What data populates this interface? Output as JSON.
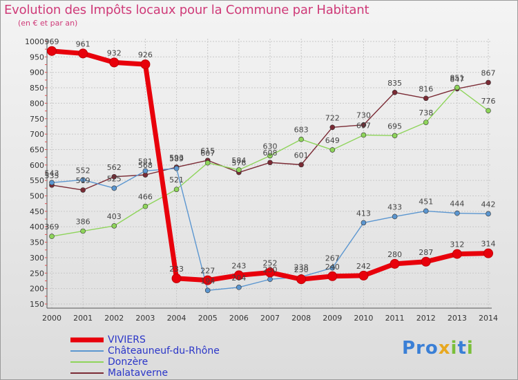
{
  "header": {
    "title": "Evolution des Impôts locaux pour la Commune par Habitant",
    "subtitle": "(en € et par an)"
  },
  "logo": {
    "text": "Proxiti"
  },
  "colors": {
    "title": "#cf3a78",
    "legend_text": "#2a35c8",
    "grid": "#c8c8c8"
  },
  "chart_data": {
    "type": "line",
    "title": "Evolution des Impôts locaux pour la Commune par Habitant",
    "subtitle": "(en € et par an)",
    "xlabel": "",
    "ylabel": "",
    "x": [
      2000,
      2001,
      2002,
      2003,
      2004,
      2005,
      2006,
      2007,
      2008,
      2009,
      2010,
      2011,
      2012,
      2013,
      2014
    ],
    "ylim": [
      150,
      1000
    ],
    "yticks": [
      150,
      200,
      250,
      300,
      350,
      400,
      450,
      500,
      550,
      600,
      650,
      700,
      750,
      800,
      850,
      900,
      950,
      1000
    ],
    "grid": true,
    "legend_position": "bottom-left",
    "series": [
      {
        "name": "VIVIERS",
        "color": "#e8000b",
        "values": [
          969,
          961,
          932,
          926,
          233,
          227,
          243,
          252,
          230,
          240,
          242,
          280,
          287,
          312,
          314
        ],
        "labels": [
          "969",
          "961",
          "932",
          "926",
          "233",
          "227",
          "243",
          "252",
          "230",
          "240",
          "242",
          "280",
          "287",
          "312",
          "314"
        ]
      },
      {
        "name": "Châteauneuf-du-Rhône",
        "color": "#5b96d0",
        "values": [
          543,
          552,
          525,
          581,
          589,
          194,
          204,
          230,
          238,
          267,
          413,
          433,
          451,
          444,
          442
        ],
        "labels": [
          "543",
          "552",
          "525",
          "581",
          "589",
          "194",
          "204",
          "230",
          "238",
          "267",
          "413",
          "433",
          "451",
          "444",
          "442"
        ]
      },
      {
        "name": "Donzère",
        "color": "#8ed45a",
        "values": [
          369,
          386,
          403,
          466,
          521,
          607,
          584,
          630,
          683,
          649,
          697,
          695,
          738,
          851,
          776
        ],
        "labels": [
          "369",
          "386",
          "403",
          "466",
          "521",
          "607",
          "584",
          "630",
          "683",
          "649",
          "697",
          "695",
          "738",
          "851",
          "776"
        ]
      },
      {
        "name": "Malataverne",
        "color": "#7a2a34",
        "values": [
          535,
          519,
          562,
          568,
          593,
          615,
          576,
          608,
          601,
          722,
          730,
          835,
          816,
          847,
          867
        ],
        "labels": [
          "535",
          "519",
          "562",
          "568",
          "593",
          "615",
          "576",
          "608",
          "601",
          "722",
          "730",
          "835",
          "816",
          "847",
          "867"
        ]
      }
    ]
  }
}
